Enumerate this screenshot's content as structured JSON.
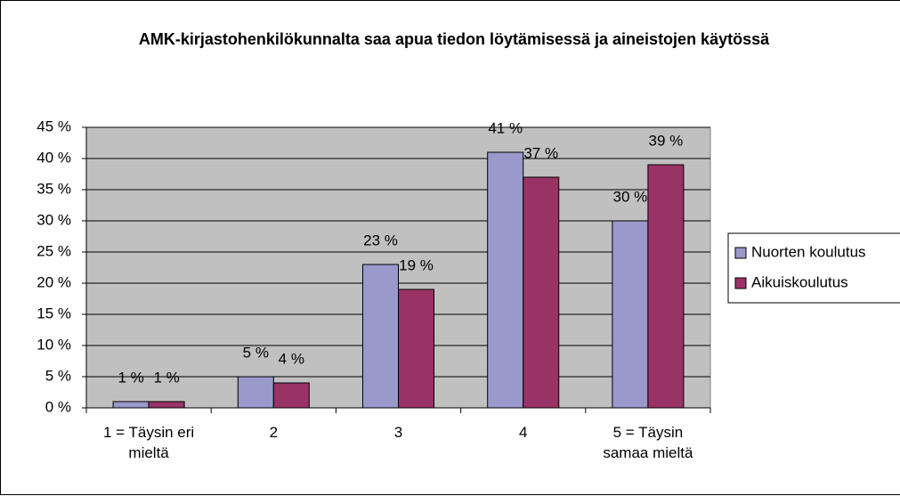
{
  "chart_data": {
    "type": "bar",
    "title": "AMK-kirjastohenkilökunnalta saa apua tiedon löytämisessä ja aineistojen käytössä",
    "categories": [
      "1 = Täysin eri mieltä",
      "2",
      "3",
      "4",
      "5 = Täysin samaa mieltä"
    ],
    "series": [
      {
        "name": "Nuorten koulutus",
        "color": "#9999cc",
        "values": [
          1,
          5,
          23,
          41,
          30
        ],
        "value_labels": [
          "1 %",
          "5 %",
          "23 %",
          "41 %",
          "30 %"
        ]
      },
      {
        "name": "Aikuiskoulutus",
        "color": "#993366",
        "values": [
          1,
          4,
          19,
          37,
          39
        ],
        "value_labels": [
          "1 %",
          "4 %",
          "19 %",
          "37 %",
          "39 %"
        ]
      }
    ],
    "ylim": [
      0,
      45
    ],
    "yticks": [
      {
        "value": 0,
        "label": "0 %"
      },
      {
        "value": 5,
        "label": "5 %"
      },
      {
        "value": 10,
        "label": "10 %"
      },
      {
        "value": 15,
        "label": "15 %"
      },
      {
        "value": 20,
        "label": "20 %"
      },
      {
        "value": 25,
        "label": "25 %"
      },
      {
        "value": 30,
        "label": "30 %"
      },
      {
        "value": 35,
        "label": "35 %"
      },
      {
        "value": 40,
        "label": "40 %"
      },
      {
        "value": 45,
        "label": "45 %"
      }
    ],
    "grid": true,
    "plot_background": "#c0c0c0",
    "legend": "right"
  }
}
